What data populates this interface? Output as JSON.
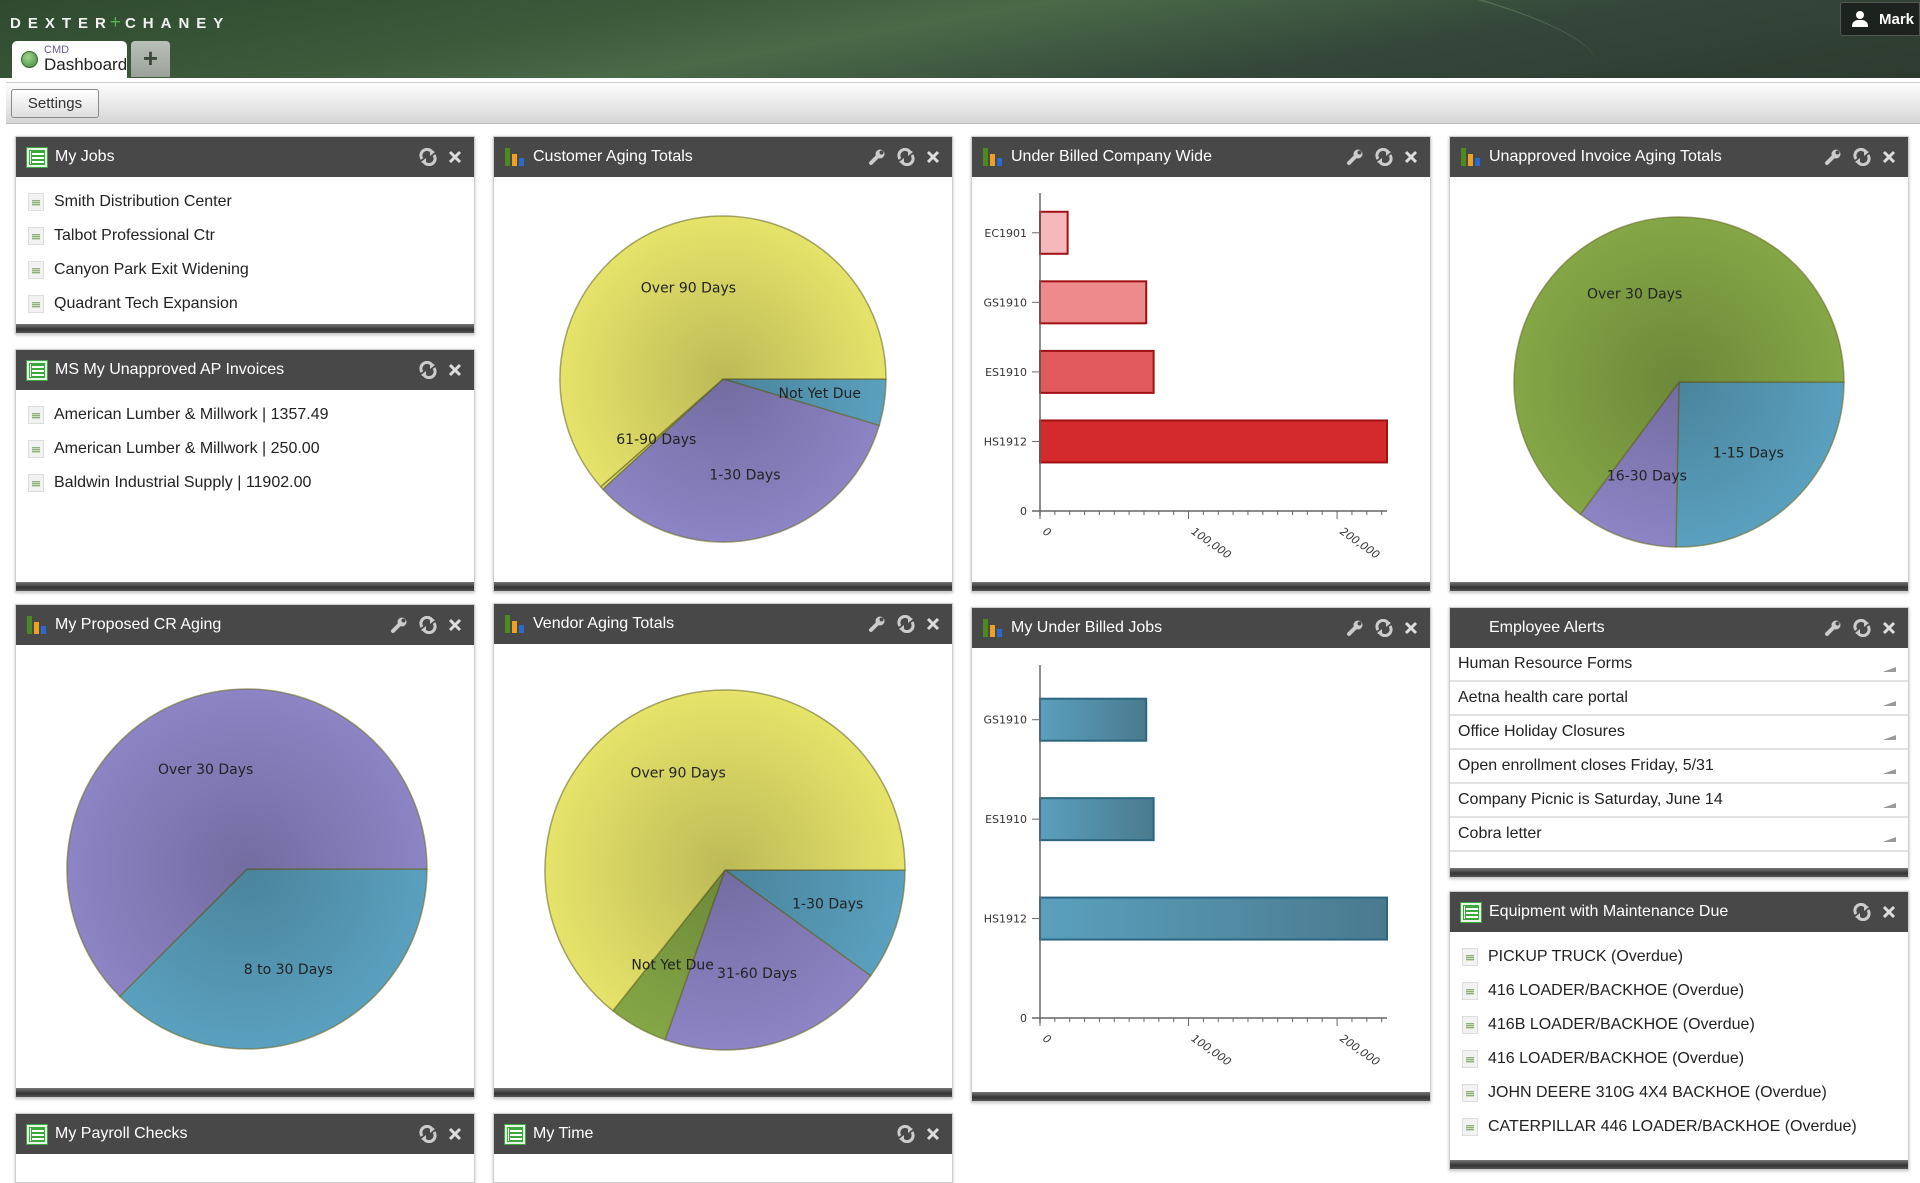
{
  "brand": {
    "left": "DEXTER",
    "plus": "+",
    "right": "CHANEY"
  },
  "user": {
    "name": "Mark"
  },
  "tabs": [
    {
      "sub": "CMD",
      "label": "Dashboard"
    }
  ],
  "add_tab_label": "+",
  "toolbar": {
    "settings": "Settings"
  },
  "colors": {
    "header": "#484848",
    "yellow": "#e6e36a",
    "purple": "#8c84c4",
    "blue": "#5aa0be",
    "green": "#84a646",
    "red": "#d42a2c"
  },
  "widgets": {
    "my_jobs": {
      "title": "My Jobs",
      "items": [
        "Smith Distribution Center",
        "Talbot Professional Ctr",
        "Canyon Park Exit Widening",
        "Quadrant Tech Expansion"
      ]
    },
    "ap_invoices": {
      "title": "MS My Unapproved AP Invoices",
      "items": [
        "American Lumber & Millwork | 1357.49",
        "American Lumber & Millwork | 250.00",
        "Baldwin Industrial Supply | 11902.00"
      ]
    },
    "payroll": {
      "title": "My Payroll Checks"
    },
    "my_time": {
      "title": "My Time"
    },
    "employee_alerts": {
      "title": "Employee Alerts",
      "items": [
        "Human Resource Forms",
        "Aetna health care portal",
        "Office Holiday Closures",
        "Open enrollment closes Friday, 5/31",
        "Company Picnic is Saturday, June 14",
        "Cobra letter"
      ]
    },
    "equipment": {
      "title": "Equipment with Maintenance Due",
      "items": [
        "PICKUP TRUCK (Overdue)",
        "416 LOADER/BACKHOE (Overdue)",
        "416B LOADER/BACKHOE (Overdue)",
        "416 LOADER/BACKHOE (Overdue)",
        "JOHN DEERE 310G 4X4 BACKHOE (Overdue)",
        "CATERPILLAR 446 LOADER/BACKHOE (Overdue)"
      ]
    }
  },
  "chart_data": [
    {
      "type": "pie",
      "title": "Customer Aging Totals",
      "unit": "percent of total",
      "slices": [
        {
          "label": "Not Yet Due",
          "value": 4.6,
          "color": "#5aa0be"
        },
        {
          "label": "1-30 Days",
          "value": 33.6,
          "color": "#8c84c4"
        },
        {
          "label": "61-90 Days",
          "value": 0.3,
          "color": "#e6e36a"
        },
        {
          "label": "Over 90 Days",
          "value": 61.5,
          "color": "#e6e36a"
        }
      ]
    },
    {
      "type": "bar",
      "orientation": "horizontal",
      "title": "Under Billed Company Wide",
      "categories": [
        "EC1901",
        "GS1910",
        "ES1910",
        "HS1912"
      ],
      "values": [
        18600,
        71500,
        76500,
        233600
      ],
      "xlim": [
        0,
        233600
      ],
      "x_ticks": [
        "0",
        "100,000",
        "200,000"
      ],
      "y_zero_label": "0",
      "colors": [
        "#f6b9bb",
        "#ee8a8c",
        "#e0595c",
        "#d42a2c"
      ]
    },
    {
      "type": "pie",
      "title": "Unapproved Invoice Aging Totals",
      "unit": "percent of total",
      "slices": [
        {
          "label": "1-15 Days",
          "value": 25.3,
          "color": "#5aa0be"
        },
        {
          "label": "16-30 Days",
          "value": 9.9,
          "color": "#8c84c4"
        },
        {
          "label": "Over 30 Days",
          "value": 64.8,
          "color": "#84a646"
        }
      ]
    },
    {
      "type": "pie",
      "title": "My Proposed CR Aging",
      "unit": "percent of total",
      "slices": [
        {
          "label": "8 to 30 Days",
          "value": 37.5,
          "color": "#5aa0be"
        },
        {
          "label": "Over 30 Days",
          "value": 62.5,
          "color": "#8c84c4"
        }
      ]
    },
    {
      "type": "pie",
      "title": "Vendor Aging Totals",
      "unit": "percent of total",
      "slices": [
        {
          "label": "1-30 Days",
          "value": 10.0,
          "color": "#5aa0be"
        },
        {
          "label": "31-60 Days",
          "value": 20.4,
          "color": "#8c84c4"
        },
        {
          "label": "Not Yet Due",
          "value": 5.3,
          "color": "#84a646"
        },
        {
          "label": "Over 90 Days",
          "value": 64.3,
          "color": "#e6e36a"
        }
      ]
    },
    {
      "type": "bar",
      "orientation": "horizontal",
      "title": "My Under Billed Jobs",
      "categories": [
        "GS1910",
        "ES1910",
        "HS1912"
      ],
      "values": [
        71500,
        76500,
        233600
      ],
      "xlim": [
        0,
        233600
      ],
      "x_ticks": [
        "0",
        "100,000",
        "200,000"
      ],
      "y_zero_label": "0",
      "colors": [
        "#5aa0be",
        "#5aa0be",
        "#5aa0be"
      ]
    }
  ]
}
